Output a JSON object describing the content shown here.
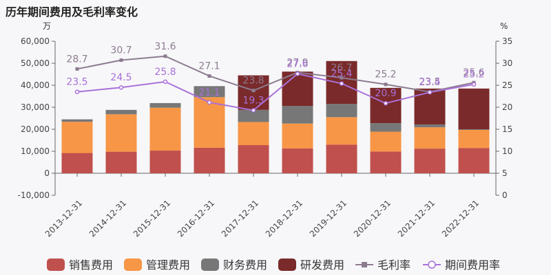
{
  "chart_data": {
    "type": "bar",
    "title": "历年期间费用及毛利率变化",
    "left_unit": "万",
    "right_unit": "%",
    "categories": [
      "2013-12-31",
      "2014-12-31",
      "2015-12-31",
      "2016-12-31",
      "2017-12-31",
      "2018-12-31",
      "2019-12-31",
      "2020-12-31",
      "2021-12-31",
      "2022-12-31"
    ],
    "left_axis": {
      "min": -10000,
      "max": 60000,
      "ticks": [
        -10000,
        0,
        10000,
        20000,
        30000,
        40000,
        50000,
        60000
      ],
      "tick_labels": [
        "-10,000",
        "0",
        "10,000",
        "20,000",
        "30,000",
        "40,000",
        "50,000",
        "60,000"
      ]
    },
    "right_axis": {
      "min": 0,
      "max": 35,
      "ticks": [
        0,
        5,
        10,
        15,
        20,
        25,
        30,
        35
      ],
      "tick_labels": [
        "0",
        "5",
        "10",
        "15",
        "20",
        "25",
        "30",
        "35"
      ]
    },
    "series": [
      {
        "name": "销售费用",
        "kind": "bar",
        "color": "#c0504d",
        "values": [
          9200,
          9800,
          10300,
          11600,
          12800,
          11300,
          13000,
          9900,
          11200,
          11500
        ]
      },
      {
        "name": "管理费用",
        "kind": "bar",
        "color": "#f79646",
        "values": [
          14200,
          17000,
          19500,
          23000,
          10500,
          11300,
          12500,
          9000,
          9700,
          8200
        ]
      },
      {
        "name": "财务费用",
        "kind": "bar",
        "color": "#777777",
        "values": [
          1100,
          2000,
          2100,
          5000,
          5500,
          8000,
          6000,
          3900,
          1300,
          300
        ]
      },
      {
        "name": "研发费用",
        "kind": "bar",
        "color": "#7a2a2a",
        "values": [
          0,
          0,
          0,
          0,
          15700,
          15600,
          19500,
          16000,
          16300,
          18500
        ]
      },
      {
        "name": "毛利率",
        "kind": "line",
        "axis": "right",
        "color": "#8c7b8f",
        "marker": "square",
        "values": [
          28.7,
          30.7,
          31.6,
          27.1,
          23.8,
          27.9,
          26.7,
          25.2,
          23.5,
          25.6
        ],
        "labels": [
          "28.7",
          "30.7",
          "31.6",
          "27.1",
          "23.8",
          "27.9",
          "26.7",
          "25.2",
          "23.5",
          "25.6"
        ]
      },
      {
        "name": "期间费用率",
        "kind": "line",
        "axis": "right",
        "color": "#a970d8",
        "marker": "circle",
        "values": [
          23.5,
          24.5,
          25.8,
          21.1,
          19.3,
          27.6,
          25.4,
          20.9,
          23.4,
          25.2
        ],
        "labels": [
          "23.5",
          "24.5",
          "25.8",
          "21.1",
          "19.3",
          "27.6",
          "25.4",
          "20.9",
          "23.4",
          "25.2"
        ]
      }
    ],
    "legend": {
      "position": "bottom"
    },
    "grid": false
  }
}
